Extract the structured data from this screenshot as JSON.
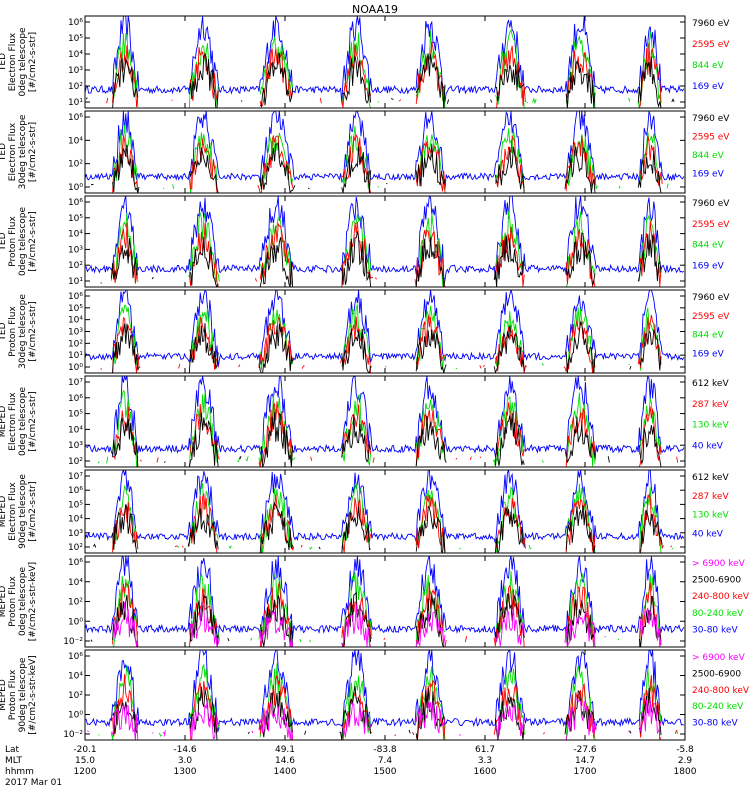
{
  "title": "NOAA19",
  "colors": {
    "blue": "#0000ff",
    "green": "#00dd00",
    "red": "#ff0000",
    "black": "#000000",
    "magenta": "#ff00ff"
  },
  "chart_data": [
    {
      "type": "line",
      "ylabel": [
        "TED",
        "Electron Flux",
        "0deg telescope",
        "[#/cm2-s-str]"
      ],
      "yticks": [
        "10¹",
        "10²",
        "10³",
        "10⁴",
        "10⁵",
        "10⁶"
      ],
      "ylim_log10": [
        0.5,
        6.2
      ],
      "legend": [
        {
          "label": "7960 eV",
          "color": "black"
        },
        {
          "label": "2595 eV",
          "color": "red"
        },
        {
          "label": "844 eV",
          "color": "green"
        },
        {
          "label": "169 eV",
          "color": "blue"
        }
      ]
    },
    {
      "type": "line",
      "ylabel": [
        "TED",
        "Electron Flux",
        "30deg telescope",
        "[#/cm2-s-str]"
      ],
      "yticks": [
        "10⁰",
        "10²",
        "10⁴",
        "10⁶"
      ],
      "ylim_log10": [
        0,
        6.2
      ],
      "legend": [
        {
          "label": "7960 eV",
          "color": "black"
        },
        {
          "label": "2595 eV",
          "color": "red"
        },
        {
          "label": "844 eV",
          "color": "green"
        },
        {
          "label": "169 eV",
          "color": "blue"
        }
      ]
    },
    {
      "type": "line",
      "ylabel": [
        "TED",
        "Proton Flux",
        "0deg telescope",
        "[#/cm2-s-str]"
      ],
      "yticks": [
        "10¹",
        "10²",
        "10³",
        "10⁴",
        "10⁵",
        "10⁶"
      ],
      "ylim_log10": [
        0.5,
        6.2
      ],
      "legend": [
        {
          "label": "7960 eV",
          "color": "black"
        },
        {
          "label": "2595 eV",
          "color": "red"
        },
        {
          "label": "844 eV",
          "color": "green"
        },
        {
          "label": "169 eV",
          "color": "blue"
        }
      ]
    },
    {
      "type": "line",
      "ylabel": [
        "TED",
        "Proton Flux",
        "30deg telescope",
        "[#/cm2-s-str]"
      ],
      "yticks": [
        "10⁰",
        "10¹",
        "10²",
        "10³",
        "10⁴",
        "10⁵",
        "10⁶"
      ],
      "ylim_log10": [
        0,
        6.2
      ],
      "legend": [
        {
          "label": "7960 eV",
          "color": "black"
        },
        {
          "label": "2595 eV",
          "color": "red"
        },
        {
          "label": "844 eV",
          "color": "green"
        },
        {
          "label": "169 eV",
          "color": "blue"
        }
      ]
    },
    {
      "type": "line",
      "ylabel": [
        "MEPED",
        "Electron Flux",
        "0deg telescope",
        "[#/cm2-s-str]"
      ],
      "yticks": [
        "10²",
        "10³",
        "10⁴",
        "10⁵",
        "10⁶",
        "10⁷"
      ],
      "ylim_log10": [
        1.8,
        7.3
      ],
      "legend": [
        {
          "label": "612 keV",
          "color": "black"
        },
        {
          "label": "287 keV",
          "color": "red"
        },
        {
          "label": "130 keV",
          "color": "green"
        },
        {
          "label": "40 keV",
          "color": "blue"
        }
      ]
    },
    {
      "type": "line",
      "ylabel": [
        "MEPED",
        "Electron Flux",
        "90deg telescope",
        "[#/cm2-s-str]"
      ],
      "yticks": [
        "10²",
        "10³",
        "10⁴",
        "10⁵",
        "10⁶",
        "10⁷"
      ],
      "ylim_log10": [
        1.8,
        7.3
      ],
      "legend": [
        {
          "label": "612 keV",
          "color": "black"
        },
        {
          "label": "287 keV",
          "color": "red"
        },
        {
          "label": "130 keV",
          "color": "green"
        },
        {
          "label": "40 keV",
          "color": "blue"
        }
      ]
    },
    {
      "type": "line",
      "ylabel": [
        "MEPED",
        "Proton Flux",
        "0deg telescope",
        "[#/cm2-s-str-keV]"
      ],
      "yticks": [
        "10⁻²",
        "10⁰",
        "10²",
        "10⁴",
        "10⁶"
      ],
      "ylim_log10": [
        -2.5,
        6.2
      ],
      "legend": [
        {
          "label": "> 6900 keV",
          "color": "magenta"
        },
        {
          "label": "2500-6900",
          "color": "black"
        },
        {
          "label": "240-800 keV",
          "color": "red"
        },
        {
          "label": "80-240 keV",
          "color": "green"
        },
        {
          "label": "30-80 keV",
          "color": "blue"
        }
      ]
    },
    {
      "type": "line",
      "ylabel": [
        "MEPED",
        "Proton Flux",
        "90deg telescope",
        "[#/cm2-s-str-keV]"
      ],
      "yticks": [
        "10⁻²",
        "10⁰",
        "10²",
        "10⁴",
        "10⁶"
      ],
      "ylim_log10": [
        -2.5,
        6.2
      ],
      "legend": [
        {
          "label": "> 6900 keV",
          "color": "magenta"
        },
        {
          "label": "2500-6900",
          "color": "black"
        },
        {
          "label": "240-800 keV",
          "color": "red"
        },
        {
          "label": "80-240 keV",
          "color": "green"
        },
        {
          "label": "30-80 keV",
          "color": "blue"
        }
      ]
    }
  ],
  "xaxis": {
    "row_labels": [
      "Lat",
      "MLT",
      "hhmm"
    ],
    "xlim_minutes": [
      720,
      1080
    ],
    "ticks": [
      {
        "minute": 720,
        "lat": "-20.1",
        "mlt": "15.0",
        "hhmm": "1200"
      },
      {
        "minute": 780,
        "lat": "-14.6",
        "mlt": "3.0",
        "hhmm": "1300"
      },
      {
        "minute": 840,
        "lat": "49.1",
        "mlt": "14.6",
        "hhmm": "1400"
      },
      {
        "minute": 900,
        "lat": "-83.8",
        "mlt": "7.4",
        "hhmm": "1500"
      },
      {
        "minute": 960,
        "lat": "61.7",
        "mlt": "3.3",
        "hhmm": "1600"
      },
      {
        "minute": 1020,
        "lat": "-27.6",
        "mlt": "14.7",
        "hhmm": "1700"
      },
      {
        "minute": 1080,
        "lat": "-5.8",
        "mlt": "2.9",
        "hhmm": "1800"
      }
    ],
    "date": "2017 Mar 01"
  },
  "passes_minutes": [
    [
      736,
      752
    ],
    [
      782,
      800
    ],
    [
      825,
      845
    ],
    [
      874,
      892
    ],
    [
      918,
      936
    ],
    [
      966,
      984
    ],
    [
      1008,
      1026
    ],
    [
      1052,
      1066
    ]
  ]
}
